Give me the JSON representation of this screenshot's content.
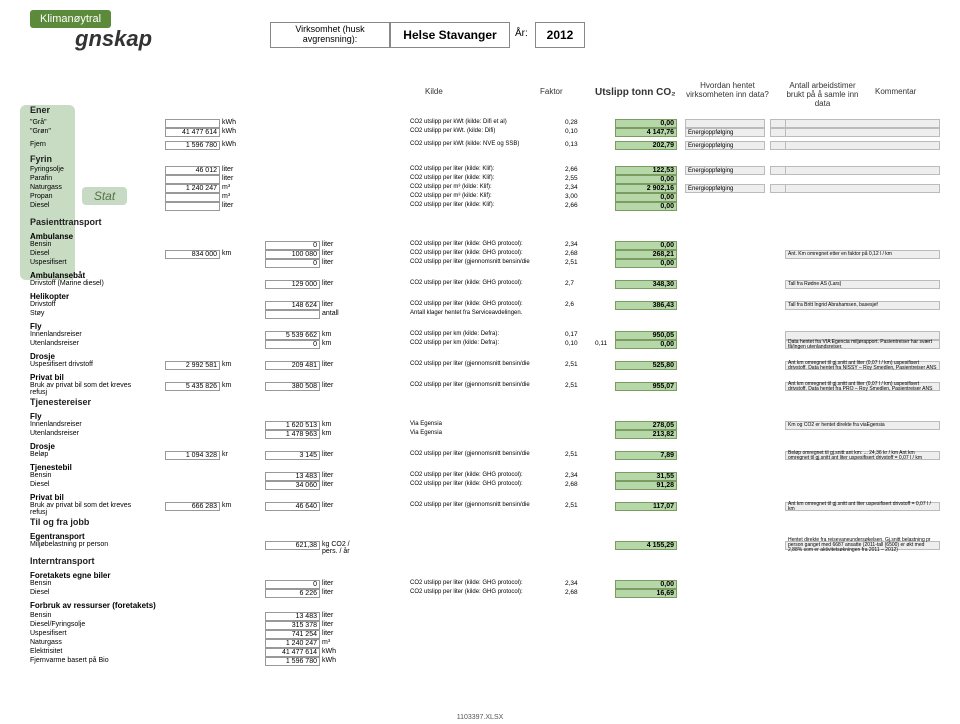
{
  "header": {
    "logo": "Klimanøytral",
    "title": "gnskap",
    "virksomhet_label": "Virksomhet (husk avgrensning):",
    "virksomhet_value": "Helse Stavanger",
    "aar_label": "År:",
    "aar_value": "2012"
  },
  "columns": {
    "kilde": "Kilde",
    "faktor": "Faktor",
    "co2": "Utslipp tonn CO₂",
    "data": "Hvordan hentet virksomheten inn data?",
    "arbeid": "Antall arbeidstimer brukt på å samle inn data",
    "kommentar": "Kommentar"
  },
  "colors": {
    "green_box": "#b6d7a8",
    "wm": "#c5d9c0"
  },
  "sections": {
    "ener": {
      "title": "Ener",
      "graa": {
        "label": "\"Grå\"",
        "unit1": "kWh",
        "kilde": "CO2 utslipp per kWt (kilde: Difi et al)",
        "faktor": "0,28",
        "co2": "0,00"
      },
      "groen": {
        "label": "\"Grøn\"",
        "val1": "41 477 614",
        "unit1": "kWh",
        "kilde": "CO2 utslipp per kWt. (kilde: Difi)",
        "faktor": "0,10",
        "co2": "4 147,76",
        "data": "Energioppfølging"
      },
      "fjern": {
        "label": "Fjern",
        "val1": "1 596 780",
        "unit1": "kWh",
        "kilde": "CO2 utslipp per kWt (kilde: NVE og SSB)",
        "faktor": "0,13",
        "co2": "202,79",
        "data": "Energioppfølging"
      }
    },
    "fyrin": {
      "title": "Fyrin",
      "rows": [
        {
          "label": "Fyringsolje",
          "val1": "46 012",
          "unit1": "liter",
          "kilde": "CO2 utslipp per liter (kilde: Klif):",
          "faktor": "2,66",
          "co2": "122,53",
          "data": "Energioppfølging"
        },
        {
          "label": "Parafin",
          "unit1": "liter",
          "kilde": "CO2 utslipp per liter (kilde: Klif):",
          "faktor": "2,55",
          "co2": "0,00"
        },
        {
          "label": "Naturgass",
          "val1": "1 240 247",
          "unit1": "m³",
          "kilde": "CO2 utslipp per m³ (kilde: Klif):",
          "faktor": "2,34",
          "co2": "2 902,16",
          "data": "Energioppfølging"
        },
        {
          "label": "Propan",
          "unit1": "m³",
          "kilde": "CO2 utslipp per m³ (kilde: Klif):",
          "faktor": "3,00",
          "co2": "0,00"
        },
        {
          "label": "Diesel",
          "unit1": "liter",
          "kilde": "CO2 utslipp per liter (kilde: Klif):",
          "faktor": "2,66",
          "co2": "0,00"
        }
      ]
    },
    "pasient": {
      "title": "Pasienttransport",
      "ambulanse": {
        "title": "Ambulanse",
        "rows": [
          {
            "label": "Bensin",
            "val2": "0",
            "unit2": "liter",
            "kilde": "CO2 utslipp per liter (kilde: GHG protocol):",
            "faktor": "2,34",
            "co2": "0,00"
          },
          {
            "label": "Diesel",
            "val1": "834 000",
            "unit1": "km",
            "val2": "100 080",
            "unit2": "liter",
            "kilde": "CO2 utslipp per liter (kilde: GHG protocol):",
            "faktor": "2,68",
            "co2": "268,21",
            "comment": "Ant. Km omregnet etter en faktor på 0,12 l / km"
          },
          {
            "label": "Uspesifisert",
            "val2": "0",
            "unit2": "liter",
            "kilde": "CO2 utslipp per liter (gjennomsnitt bensin/die",
            "faktor": "2,51",
            "co2": "0,00"
          }
        ]
      },
      "ambulansebaat": {
        "title": "Ambulansebåt",
        "rows": [
          {
            "label": "Drivstoff (Marine diesel)",
            "val2": "129 000",
            "unit2": "liter",
            "kilde": "CO2 utslipp per liter (kilde: GHG protocol):",
            "faktor": "2,7",
            "co2": "348,30",
            "comment": "Tall fra Rødne AS (Lars)"
          }
        ]
      },
      "helikopter": {
        "title": "Helikopter",
        "rows": [
          {
            "label": "Drivstoff",
            "val2": "148 624",
            "unit2": "liter",
            "kilde": "CO2 utslipp per liter (kilde: GHG protocol):",
            "faktor": "2,6",
            "co2": "386,43",
            "comment": "Tall fra Britt Ingrid Abrahamsen, basesjef"
          },
          {
            "label": "Støy",
            "unit2": "antall",
            "kilde": "Antall klager hentet fra Serviceavdelingen."
          }
        ]
      },
      "fly": {
        "title": "Fly",
        "rows": [
          {
            "label": "Innenlandsreiser",
            "val2": "5 539 662",
            "unit2": "km",
            "kilde": "CO2 utslipp per km (kilde: Defra):",
            "faktor": "0,17",
            "co2": "950,05"
          },
          {
            "label": "Utenlandsreiser",
            "val2": "0",
            "unit2": "km",
            "kilde": "CO2 utslipp per km (kilde: Defra):",
            "faktor": "0,10",
            "faktor2": "0,11",
            "co2": "0,00",
            "comment": "Data hentet fra VIA Egencia miljørapport. Pasientreiser har svært få/ingen utenlandsreiser."
          }
        ]
      },
      "drosje": {
        "title": "Drosje",
        "rows": [
          {
            "label": "Uspesifisert drivstoff",
            "val1": "2 992 581",
            "unit1": "km",
            "val2": "209 481",
            "unit2": "liter",
            "kilde": "CO2 utslipp per liter (gjennomsnitt bensin/die",
            "faktor": "2,51",
            "co2": "525,80",
            "comment": "Ant km omregnet til gj.snitt ant liter (0,07 l / km) uspesifisert drivstoff. Data hentet fra NISSY – Roy Smedlen, Pasientreiser ANS"
          }
        ]
      },
      "privatbil": {
        "title": "Privat bil",
        "rows": [
          {
            "label": "Bruk av privat bil som det kreves refusj",
            "val1": "5 435 826",
            "unit1": "km",
            "val2": "380 508",
            "unit2": "liter",
            "kilde": "CO2 utslipp per liter (gjennomsnitt bensin/die",
            "faktor": "2,51",
            "co2": "955,07",
            "comment": "Ant km omregnet til gj.snitt ant liter (0,07 l / km) uspesifisert drivstoff. Data hentet fra PRO – Roy Smedlen, Pasientreiser ANS"
          }
        ]
      }
    },
    "tjeneste": {
      "title": "Tjenestereiser",
      "fly": {
        "title": "Fly",
        "rows": [
          {
            "label": "Innenlandsreiser",
            "val2": "1 620 513",
            "unit2": "km",
            "kilde": "Via Egensia",
            "co2": "278,05",
            "comment": "Km og CO2 er hentet direkte fra viaEgensia"
          },
          {
            "label": "Utenlandsreiser",
            "val2": "1 478 963",
            "unit2": "km",
            "kilde": "Via Egensia",
            "co2": "213,82"
          }
        ]
      },
      "drosje": {
        "title": "Drosje",
        "rows": [
          {
            "label": "Beløp",
            "val1": "1 094 328",
            "unit1": "kr",
            "val2": "3 145",
            "unit2": "liter",
            "kilde": "CO2 utslipp per liter (gjennomsnitt bensin/die",
            "faktor": "2,51",
            "co2": "7,89",
            "comment": "Beløp omregnet til gj.snitt ant km: ... 24,36 kr / km\nAnt km omregnet til gj.snitt ant liter uspesifisert drivstoff = 0,07 l / km"
          }
        ]
      },
      "tjenestebil": {
        "title": "Tjenestebil",
        "rows": [
          {
            "label": "Bensin",
            "val2": "13 483",
            "unit2": "liter",
            "kilde": "CO2 utslipp per liter (kilde: GHG protocol):",
            "faktor": "2,34",
            "co2": "31,55"
          },
          {
            "label": "Diesel",
            "val2": "34 060",
            "unit2": "liter",
            "kilde": "CO2 utslipp per liter (kilde: GHG protocol):",
            "faktor": "2,68",
            "co2": "91,28"
          }
        ]
      },
      "privatbil": {
        "title": "Privat bil",
        "rows": [
          {
            "label": "Bruk av privat bil som det kreves refusj",
            "val1": "666 283",
            "unit1": "km",
            "val2": "46 640",
            "unit2": "liter",
            "kilde": "CO2 utslipp per liter (gjennomsnitt bensin/die",
            "faktor": "2,51",
            "co2": "117,07",
            "comment": "Ant km omregnet til gj.snitt ant liter uspesifisert drivstoff = 0,07 l / km"
          }
        ]
      }
    },
    "tilogfra": {
      "title": "Til og fra jobb",
      "egentransport": {
        "title": "Egentransport",
        "rows": [
          {
            "label": "Miljøbelastning pr person",
            "val2": "621,38",
            "unit2": "kg CO2 / pers. / år",
            "co2": "4 155,29",
            "comment": "Hentet direkte fra reisevaneundersøkelsen. Gj.snitt belastning pr person ganget med 6687 ansatte (2011-tall (6500) er økt med 2,88% som er aktivitetsøkningen fra 2011 – 2012)"
          }
        ]
      }
    },
    "intern": {
      "title": "Interntransport",
      "foretakets": {
        "title": "Foretakets egne biler",
        "rows": [
          {
            "label": "Bensin",
            "val2": "0",
            "unit2": "liter",
            "kilde": "CO2 utslipp per liter (kilde: GHG protocol):",
            "faktor": "2,34",
            "co2": "0,00"
          },
          {
            "label": "Diesel",
            "val2": "6 226",
            "unit2": "liter",
            "kilde": "CO2 utslipp per liter (kilde: GHG protocol):",
            "faktor": "2,68",
            "co2": "16,69"
          }
        ]
      },
      "forbruk": {
        "title": "Forbruk av ressurser (foretakets)",
        "rows": [
          {
            "label": "Bensin",
            "val2": "13 483",
            "unit2": "liter"
          },
          {
            "label": "Diesel/Fyringsolje",
            "val2": "315 378",
            "unit2": "liter"
          },
          {
            "label": "Uspesifisert",
            "val2": "741 254",
            "unit2": "liter"
          },
          {
            "label": "Naturgass",
            "val2": "1 240 247",
            "unit2": "m³"
          },
          {
            "label": "Elektrisitet",
            "val2": "41 477 614",
            "unit2": "kWh"
          },
          {
            "label": "Fjernvarme basert på Bio",
            "val2": "1 596 780",
            "unit2": "kWh"
          }
        ]
      }
    }
  },
  "footer": "1103397.XLSX"
}
